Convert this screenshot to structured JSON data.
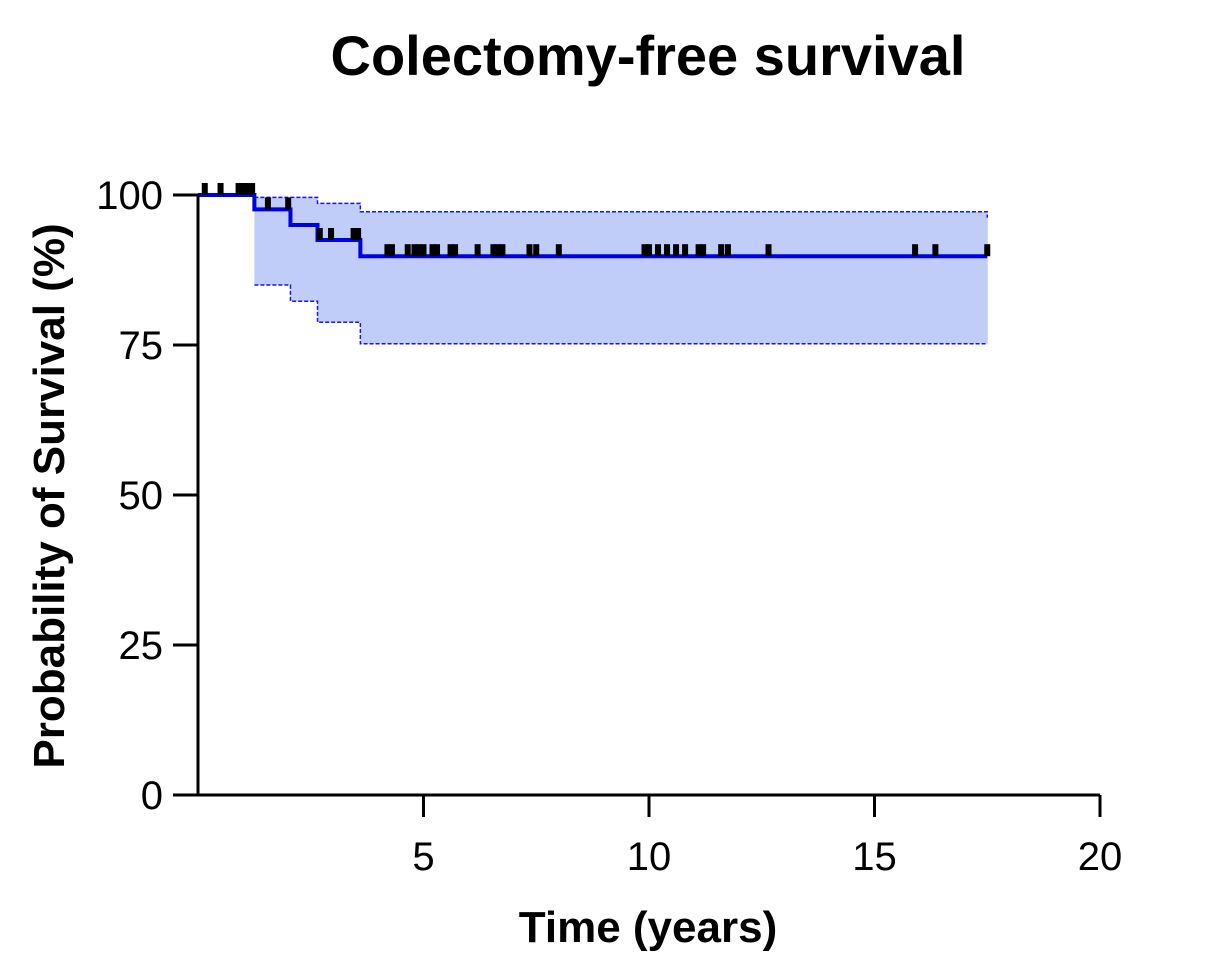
{
  "chart_data": {
    "type": "line",
    "subtype": "kaplan-meier",
    "title": "Colectomy-free survival",
    "xlabel": "Time (years)",
    "ylabel": "Probability of Survival (%)",
    "xlim": [
      0,
      20
    ],
    "ylim": [
      0,
      100
    ],
    "x_ticks": [
      5,
      10,
      15,
      20
    ],
    "y_ticks": [
      0,
      25,
      50,
      75,
      100
    ],
    "grid": false,
    "legend": "none",
    "colors": {
      "survival": "#0000e6",
      "ci_fill": "#bfcdf8",
      "ci_line": "#1a1acc",
      "censor": "#000000",
      "axis": "#000000"
    },
    "series": [
      {
        "role": "survival-estimate",
        "x": [
          0,
          1.25,
          2.05,
          2.65,
          3.6,
          17.5
        ],
        "y": [
          100,
          97.6,
          95.0,
          92.5,
          89.8,
          89.8
        ],
        "step": true
      },
      {
        "role": "upper-95-ci",
        "x": [
          1.25,
          2.65,
          3.6,
          17.5
        ],
        "y": [
          99.6,
          98.6,
          97.2,
          96.2
        ],
        "step": true
      },
      {
        "role": "lower-95-ci",
        "x": [
          1.25,
          2.05,
          2.65,
          3.6,
          17.5
        ],
        "y": [
          85.0,
          82.3,
          78.8,
          75.2,
          75.2
        ],
        "step": true
      }
    ],
    "censored_times": [
      0.15,
      0.5,
      0.9,
      0.95,
      1.0,
      1.05,
      1.1,
      1.2,
      1.55,
      2.0,
      2.7,
      2.95,
      3.45,
      3.55,
      4.2,
      4.3,
      4.65,
      4.8,
      4.9,
      5.0,
      5.2,
      5.3,
      5.6,
      5.7,
      6.2,
      6.55,
      6.65,
      6.75,
      7.35,
      7.5,
      8.0,
      9.9,
      10.0,
      10.2,
      10.4,
      10.6,
      10.8,
      11.1,
      11.2,
      11.6,
      11.75,
      12.65,
      15.9,
      16.35,
      17.5
    ]
  }
}
